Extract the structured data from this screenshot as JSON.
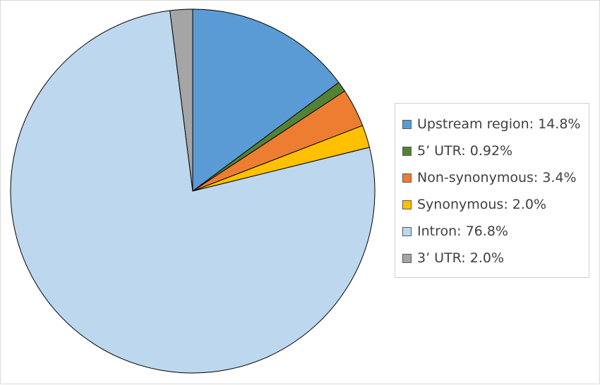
{
  "chart_data": {
    "type": "pie",
    "legend_position": "right",
    "slices": [
      {
        "name": "Upstream region",
        "value": 14.8,
        "label": "Upstream region: 14.8%",
        "color": "#5B9BD5"
      },
      {
        "name": "5’ UTR",
        "value": 0.92,
        "label": "5’ UTR: 0.92%",
        "color": "#548235"
      },
      {
        "name": "Non-synonymous",
        "value": 3.4,
        "label": "Non-synonymous: 3.4%",
        "color": "#ED7D31"
      },
      {
        "name": "Synonymous",
        "value": 2.0,
        "label": "Synonymous: 2.0%",
        "color": "#FFC000"
      },
      {
        "name": "Intron",
        "value": 76.8,
        "label": "Intron: 76.8%",
        "color": "#BDD7EE"
      },
      {
        "name": "3’ UTR",
        "value": 2.0,
        "label": "3’ UTR: 2.0%",
        "color": "#A5A5A5"
      }
    ]
  }
}
